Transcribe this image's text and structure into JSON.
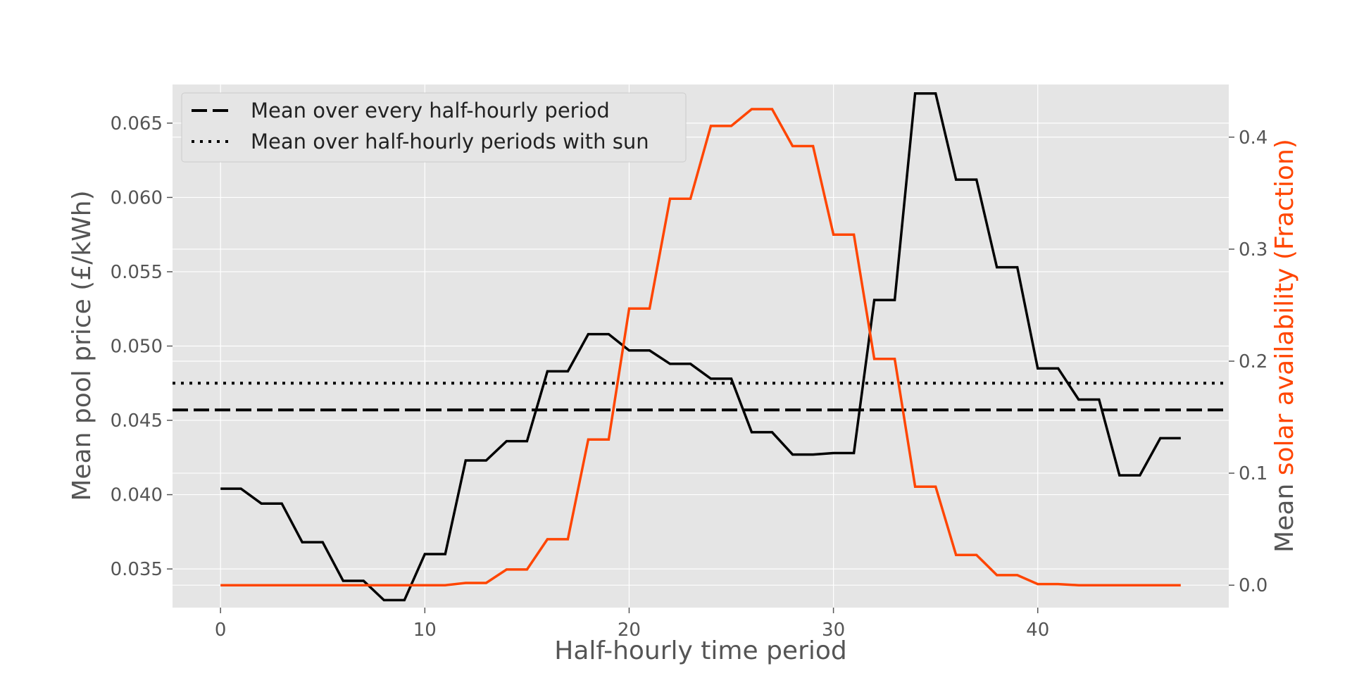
{
  "chart_data": {
    "type": "line",
    "title": "",
    "xlabel": "Half-hourly time period",
    "ylabel_left": "Mean pool price (£/kWh)",
    "ylabel_right_prefix": "Mean ",
    "ylabel_right_colored": "solar availability (Fraction)",
    "xlim": [
      -2.35,
      49.35
    ],
    "ylim_left": [
      0.0324,
      0.0676
    ],
    "ylim_right": [
      -0.02,
      0.447
    ],
    "x_ticks": [
      0,
      10,
      20,
      30,
      40
    ],
    "y_left_ticks": [
      0.035,
      0.04,
      0.045,
      0.05,
      0.055,
      0.06,
      0.065
    ],
    "y_left_tick_labels": [
      "0.035",
      "0.040",
      "0.045",
      "0.050",
      "0.055",
      "0.060",
      "0.065"
    ],
    "y_right_ticks": [
      0.0,
      0.1,
      0.2,
      0.3,
      0.4
    ],
    "y_right_tick_labels": [
      "0.0",
      "0.1",
      "0.2",
      "0.3",
      "0.4"
    ],
    "grid": true,
    "legend_position": "top-left",
    "legend": [
      {
        "label": "Mean over every half-hourly period",
        "style": "dashed"
      },
      {
        "label": "Mean over half-hourly periods with sun",
        "style": "dotted"
      }
    ],
    "series": [
      {
        "axis": "left",
        "color": "#000000",
        "x": [
          0,
          1,
          2,
          3,
          4,
          5,
          6,
          7,
          8,
          9,
          10,
          11,
          12,
          13,
          14,
          15,
          16,
          17,
          18,
          19,
          20,
          21,
          22,
          23,
          24,
          25,
          26,
          27,
          28,
          29,
          30,
          31,
          32,
          33,
          34,
          35,
          36,
          37,
          38,
          39,
          40,
          41,
          42,
          43,
          44,
          45,
          46,
          47
        ],
        "values": [
          0.0404,
          0.0404,
          0.0394,
          0.0394,
          0.0368,
          0.0368,
          0.0342,
          0.0342,
          0.0329,
          0.0329,
          0.036,
          0.036,
          0.0423,
          0.0423,
          0.0436,
          0.0436,
          0.0483,
          0.0483,
          0.0508,
          0.0508,
          0.0497,
          0.0497,
          0.0488,
          0.0488,
          0.0478,
          0.0478,
          0.0442,
          0.0442,
          0.0427,
          0.0427,
          0.0428,
          0.0428,
          0.0531,
          0.0531,
          0.067,
          0.067,
          0.0612,
          0.0612,
          0.0553,
          0.0553,
          0.0485,
          0.0485,
          0.0464,
          0.0464,
          0.0413,
          0.0413,
          0.0438,
          0.0438
        ]
      },
      {
        "axis": "right",
        "color": "#ff4500",
        "x": [
          0,
          1,
          2,
          3,
          4,
          5,
          6,
          7,
          8,
          9,
          10,
          11,
          12,
          13,
          14,
          15,
          16,
          17,
          18,
          19,
          20,
          21,
          22,
          23,
          24,
          25,
          26,
          27,
          28,
          29,
          30,
          31,
          32,
          33,
          34,
          35,
          36,
          37,
          38,
          39,
          40,
          41,
          42,
          43,
          44,
          45,
          46,
          47
        ],
        "values": [
          0,
          0,
          0,
          0,
          0,
          0,
          0,
          0,
          0,
          0,
          0,
          0,
          0.002,
          0.002,
          0.014,
          0.014,
          0.041,
          0.041,
          0.13,
          0.13,
          0.247,
          0.247,
          0.345,
          0.345,
          0.41,
          0.41,
          0.425,
          0.425,
          0.392,
          0.392,
          0.313,
          0.313,
          0.202,
          0.202,
          0.088,
          0.088,
          0.027,
          0.027,
          0.009,
          0.009,
          0.001,
          0.001,
          0,
          0,
          0,
          0,
          0,
          0
        ]
      }
    ],
    "reference_lines": [
      {
        "axis": "left",
        "value": 0.0457,
        "style": "dashed",
        "label": "Mean over every half-hourly period"
      },
      {
        "axis": "left",
        "value": 0.0475,
        "style": "dotted",
        "label": "Mean over half-hourly periods with sun"
      }
    ],
    "colors": {
      "plot_background": "#e5e5e5",
      "grid": "#ffffff",
      "price_line": "#000000",
      "solar_line": "#ff4500",
      "right_label_accent": "#ff4500"
    }
  }
}
